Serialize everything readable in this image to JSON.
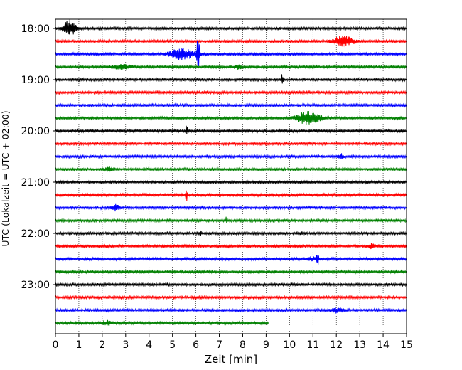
{
  "chart_data": {
    "type": "line",
    "title": "",
    "xlabel": "Zeit  [min]",
    "ylabel": "UTC (Lokalzeit = UTC + 02:00)",
    "xlim": [
      0,
      15
    ],
    "x_ticks": [
      "0",
      "1",
      "2",
      "3",
      "4",
      "5",
      "6",
      "7",
      "8",
      "9",
      "10",
      "11",
      "12",
      "13",
      "14",
      "15"
    ],
    "y_ticks": [
      "18:00",
      "19:00",
      "20:00",
      "21:00",
      "22:00",
      "23:00"
    ],
    "grid": "vertical dotted lines at each minute",
    "legend": "none",
    "colors": [
      "#000000",
      "#ff0000",
      "#0000ff",
      "#008000"
    ],
    "series": [
      {
        "start": "18:00",
        "color": "#000000",
        "end_min": 15,
        "events": [
          {
            "t": 0.6,
            "amp": 12,
            "width": 0.35
          }
        ]
      },
      {
        "start": "18:15",
        "color": "#ff0000",
        "end_min": 15,
        "events": [
          {
            "t": 12.3,
            "amp": 7,
            "width": 0.6
          }
        ]
      },
      {
        "start": "18:30",
        "color": "#0000ff",
        "end_min": 15,
        "events": [
          {
            "t": 5.4,
            "amp": 8,
            "width": 0.7
          },
          {
            "t": 6.1,
            "amp": 32,
            "width": 0.08
          }
        ]
      },
      {
        "start": "18:45",
        "color": "#008000",
        "end_min": 15,
        "events": [
          {
            "t": 2.8,
            "amp": 3,
            "width": 0.6
          },
          {
            "t": 7.8,
            "amp": 3,
            "width": 0.3
          }
        ]
      },
      {
        "start": "19:00",
        "color": "#000000",
        "end_min": 15,
        "events": [
          {
            "t": 9.7,
            "amp": 9,
            "width": 0.07
          }
        ]
      },
      {
        "start": "19:15",
        "color": "#ff0000",
        "end_min": 15,
        "events": []
      },
      {
        "start": "19:30",
        "color": "#0000ff",
        "end_min": 15,
        "events": []
      },
      {
        "start": "19:45",
        "color": "#008000",
        "end_min": 15,
        "events": [
          {
            "t": 10.8,
            "amp": 9,
            "width": 0.7
          }
        ]
      },
      {
        "start": "20:00",
        "color": "#000000",
        "end_min": 15,
        "events": [
          {
            "t": 5.6,
            "amp": 6,
            "width": 0.06
          }
        ]
      },
      {
        "start": "20:15",
        "color": "#ff0000",
        "end_min": 15,
        "events": []
      },
      {
        "start": "20:30",
        "color": "#0000ff",
        "end_min": 15,
        "events": [
          {
            "t": 12.2,
            "amp": 3,
            "width": 0.2
          }
        ]
      },
      {
        "start": "20:45",
        "color": "#008000",
        "end_min": 15,
        "events": [
          {
            "t": 2.3,
            "amp": 3,
            "width": 0.3
          }
        ]
      },
      {
        "start": "21:00",
        "color": "#000000",
        "end_min": 15,
        "events": []
      },
      {
        "start": "21:15",
        "color": "#ff0000",
        "end_min": 15,
        "events": [
          {
            "t": 5.6,
            "amp": 12,
            "width": 0.05
          }
        ]
      },
      {
        "start": "21:30",
        "color": "#0000ff",
        "end_min": 15,
        "events": [
          {
            "t": 2.6,
            "amp": 4,
            "width": 0.25
          }
        ]
      },
      {
        "start": "21:45",
        "color": "#008000",
        "end_min": 15,
        "events": [
          {
            "t": 7.3,
            "amp": 4,
            "width": 0.05
          }
        ]
      },
      {
        "start": "22:00",
        "color": "#000000",
        "end_min": 15,
        "events": [
          {
            "t": 6.2,
            "amp": 4,
            "width": 0.05
          },
          {
            "t": 10.5,
            "amp": 3,
            "width": 0.05
          }
        ]
      },
      {
        "start": "22:15",
        "color": "#ff0000",
        "end_min": 15,
        "events": [
          {
            "t": 13.5,
            "amp": 3,
            "width": 0.2
          }
        ]
      },
      {
        "start": "22:30",
        "color": "#0000ff",
        "end_min": 15,
        "events": [
          {
            "t": 11.2,
            "amp": 10,
            "width": 0.06
          },
          {
            "t": 11.0,
            "amp": 3,
            "width": 0.3
          }
        ]
      },
      {
        "start": "22:45",
        "color": "#008000",
        "end_min": 15,
        "events": []
      },
      {
        "start": "23:00",
        "color": "#000000",
        "end_min": 15,
        "events": []
      },
      {
        "start": "23:15",
        "color": "#ff0000",
        "end_min": 15,
        "events": []
      },
      {
        "start": "23:30",
        "color": "#0000ff",
        "end_min": 15,
        "events": [
          {
            "t": 12.0,
            "amp": 3,
            "width": 0.4
          }
        ]
      },
      {
        "start": "23:45",
        "color": "#008000",
        "end_min": 9.1,
        "events": [
          {
            "t": 2.2,
            "amp": 3,
            "width": 0.3
          }
        ]
      }
    ]
  }
}
